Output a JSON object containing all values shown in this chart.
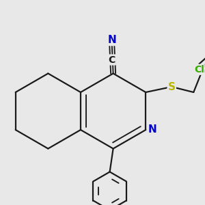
{
  "bg_color": "#e8e8e8",
  "bond_color": "#1a1a1a",
  "bond_width": 1.6,
  "atom_colors": {
    "N": "#0000cc",
    "S": "#b8b800",
    "Cl": "#33aa00",
    "C": "#1a1a1a"
  },
  "figsize": [
    3.0,
    3.0
  ],
  "dpi": 100
}
